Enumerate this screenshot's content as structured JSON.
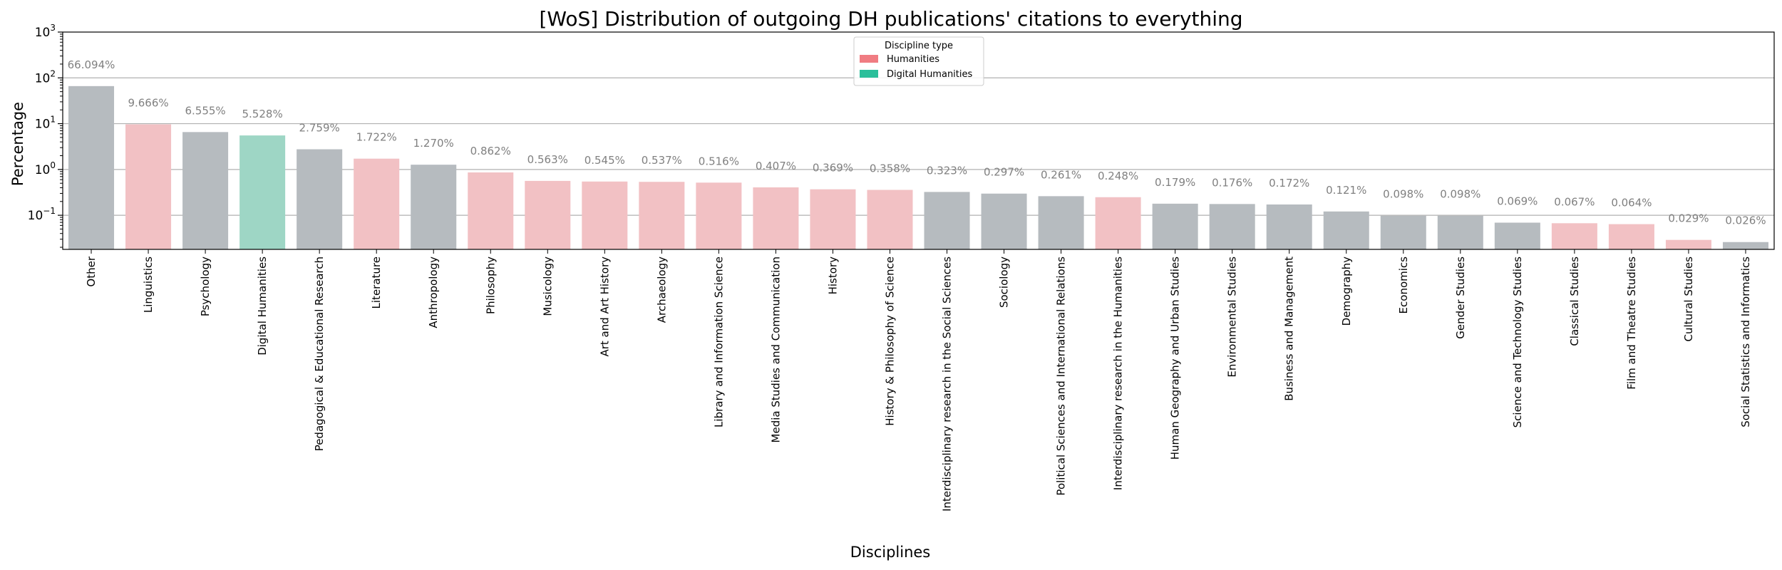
{
  "chart_data": {
    "type": "bar",
    "title": "[WoS] Distribution of outgoing DH publications' citations to everything",
    "xlabel": "Disciplines",
    "ylabel": "Percentage",
    "yscale": "log",
    "ylim": [
      0.018,
      1000
    ],
    "y_ticks": [
      {
        "value": 0.1,
        "base": "10",
        "exp": "−1"
      },
      {
        "value": 1,
        "base": "10",
        "exp": "0"
      },
      {
        "value": 10,
        "base": "10",
        "exp": "1"
      },
      {
        "value": 100,
        "base": "10",
        "exp": "2"
      },
      {
        "value": 1000,
        "base": "10",
        "exp": "3"
      }
    ],
    "grid": "y-major",
    "legend": {
      "title": "Discipline type",
      "placement": "top-center",
      "entries": [
        {
          "label": "Humanities",
          "color": "#f07c82"
        },
        {
          "label": "Digital Humanities",
          "color": "#2bbf9b"
        }
      ]
    },
    "colors": {
      "Other": "#b6bbbf",
      "Humanities": "#f2c1c4",
      "Digital Humanities": "#9ed6c5"
    },
    "categories": [
      "Other",
      "Linguistics",
      "Psychology",
      "Digital Humanities",
      "Pedagogical & Educational Research",
      "Literature",
      "Anthropology",
      "Philosophy",
      "Musicology",
      "Art and Art History",
      "Archaeology",
      "Library and Information Science",
      "Media Studies and Communication",
      "History",
      "History & Philosophy of Science",
      "Interdisciplinary research in the Social Sciences",
      "Sociology",
      "Political Sciences and International Relations",
      "Interdisciplinary research in the Humanities",
      "Human Geography and Urban Studies",
      "Environmental Studies",
      "Business and Management",
      "Demography",
      "Economics",
      "Gender Studies",
      "Science and Technology Studies",
      "Classical Studies",
      "Film and Theatre Studies",
      "Cultural Studies",
      "Social Statistics and Informatics"
    ],
    "values": [
      66.094,
      9.666,
      6.555,
      5.528,
      2.759,
      1.722,
      1.27,
      0.862,
      0.563,
      0.545,
      0.537,
      0.516,
      0.407,
      0.369,
      0.358,
      0.323,
      0.297,
      0.261,
      0.248,
      0.179,
      0.176,
      0.172,
      0.121,
      0.098,
      0.098,
      0.069,
      0.067,
      0.064,
      0.029,
      0.026
    ],
    "labels": [
      "66.094%",
      "9.666%",
      "6.555%",
      "5.528%",
      "2.759%",
      "1.722%",
      "1.270%",
      "0.862%",
      "0.563%",
      "0.545%",
      "0.537%",
      "0.516%",
      "0.407%",
      "0.369%",
      "0.358%",
      "0.323%",
      "0.297%",
      "0.261%",
      "0.248%",
      "0.179%",
      "0.176%",
      "0.172%",
      "0.121%",
      "0.098%",
      "0.098%",
      "0.069%",
      "0.067%",
      "0.064%",
      "0.029%",
      "0.026%"
    ],
    "types": [
      "Other",
      "Humanities",
      "Other",
      "Digital Humanities",
      "Other",
      "Humanities",
      "Other",
      "Humanities",
      "Humanities",
      "Humanities",
      "Humanities",
      "Humanities",
      "Humanities",
      "Humanities",
      "Humanities",
      "Other",
      "Other",
      "Other",
      "Humanities",
      "Other",
      "Other",
      "Other",
      "Other",
      "Other",
      "Other",
      "Other",
      "Humanities",
      "Humanities",
      "Humanities",
      "Other"
    ]
  }
}
